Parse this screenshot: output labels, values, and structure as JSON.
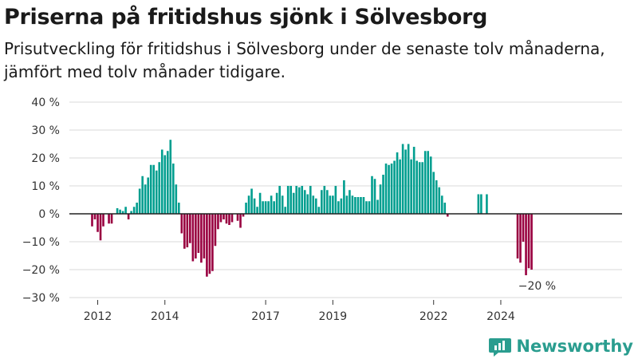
{
  "header": {
    "title": "Priserna på fritidshus sjönk i Sölvesborg",
    "subtitle": "Prisutveckling för fritidshus i Sölvesborg under de senaste tolv månaderna, jämfört med tolv månader tidigare."
  },
  "brand": {
    "name": "Newsworthy",
    "logo_icon": "newsworthy-logo-icon"
  },
  "colors": {
    "positive": "#009e8f",
    "negative": "#990040",
    "grid": "#d9d9d9",
    "zero_line": "#222222",
    "text": "#1a1a1a"
  },
  "chart_data": {
    "type": "bar",
    "x_unit": "month",
    "y_unit": "%",
    "ylim": [
      -30,
      40
    ],
    "y_ticks": [
      -30,
      -20,
      -10,
      0,
      10,
      20,
      30,
      40
    ],
    "y_tick_labels": [
      "−30 %",
      "−20 %",
      "−10 %",
      "0 %",
      "10 %",
      "20 %",
      "30 %",
      "40 %"
    ],
    "x_ticks": [
      "2012",
      "2014",
      "2017",
      "2019",
      "2022",
      "2024"
    ],
    "grid": true,
    "annotation": {
      "text": "−20 %",
      "month": "2025-01"
    },
    "series": [
      {
        "start": "2011-11",
        "values": [
          -4.5,
          -2,
          -6.5,
          -9.5,
          -4.5,
          null,
          -3.5,
          -3.5,
          null,
          2,
          1.5,
          1,
          2.5,
          -2,
          1,
          2.5,
          4,
          9,
          13.5,
          10.5,
          13,
          17.5,
          17.5,
          15.5,
          18.5,
          23,
          21,
          22.5,
          26.5,
          18,
          10.5,
          4,
          -7,
          -12.5,
          -12,
          -10.5,
          -17,
          -16,
          -14,
          -17.5,
          -16,
          -22.5,
          -21.5,
          -20.5,
          -11.5,
          -5.5,
          -3,
          -2,
          -3.5,
          -4,
          -3,
          null,
          -2.5,
          -5,
          -1,
          4,
          6.5,
          9,
          5.5,
          2.5,
          7.5,
          4.5,
          4.5,
          4.5,
          6.5,
          4.5,
          7.5,
          10,
          6.5,
          2.5,
          10,
          10,
          7.5,
          10,
          9.5,
          10,
          8.5,
          7,
          10,
          6.5,
          5.5,
          2.5,
          8.5,
          10,
          8.5,
          6.5,
          6.5,
          10,
          4.5,
          5.5,
          12,
          6.5,
          8.5,
          6.5,
          6,
          6,
          6,
          6,
          4.5,
          4.5,
          13.5,
          12.5,
          5,
          10.5,
          14,
          18,
          17.5,
          18,
          19,
          22,
          19.5,
          25,
          23,
          25,
          19.5,
          24,
          19,
          18.5,
          18.5,
          22.5,
          22.5,
          20.5,
          15,
          12,
          9.5,
          6.5,
          4,
          -1,
          null,
          null,
          null,
          null,
          null,
          null,
          null,
          null,
          null,
          null,
          7,
          7,
          null,
          7,
          null,
          null,
          null,
          null,
          null,
          null,
          null,
          null,
          null,
          null,
          -16,
          -17.5,
          -10,
          -22,
          -19.5,
          -20
        ]
      }
    ]
  }
}
